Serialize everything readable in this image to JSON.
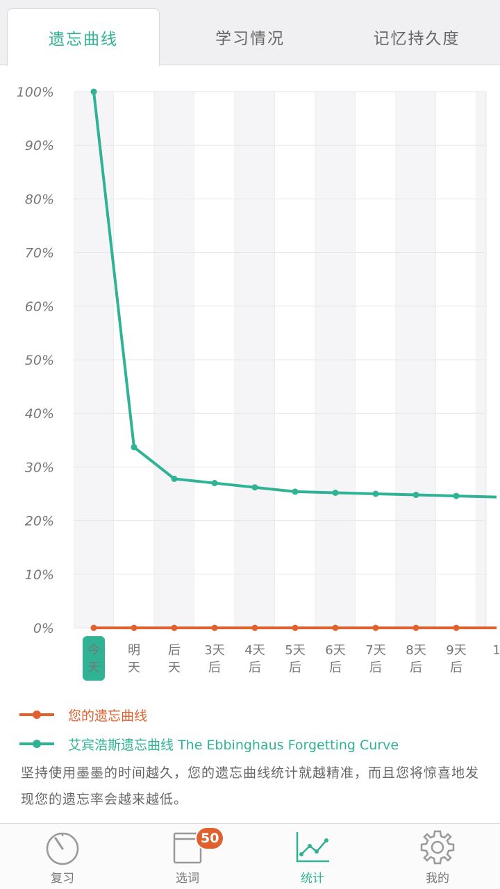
{
  "tabs": [
    {
      "label": "遗忘曲线",
      "active": true
    },
    {
      "label": "学习情况",
      "active": false
    },
    {
      "label": "记忆持久度",
      "active": false
    }
  ],
  "chart_data": {
    "type": "line",
    "categories": [
      "今天",
      "明天",
      "后天",
      "3天后",
      "4天后",
      "5天后",
      "6天后",
      "7天后",
      "8天后",
      "9天后",
      "1"
    ],
    "y_tick_labels": [
      "100%",
      "90%",
      "80%",
      "70%",
      "60%",
      "50%",
      "40%",
      "30%",
      "20%",
      "10%",
      "0%"
    ],
    "ylim": [
      0,
      100
    ],
    "grid": true,
    "series": [
      {
        "name": "您的遗忘曲线",
        "color": "#e0602e",
        "values": [
          0,
          0,
          0,
          0,
          0,
          0,
          0,
          0,
          0,
          0,
          0
        ]
      },
      {
        "name": "艾宾浩斯遗忘曲线 The Ebbinghaus Forgetting Curve",
        "color": "#2fb394",
        "values": [
          100,
          33.7,
          27.8,
          27.0,
          26.2,
          25.4,
          25.2,
          25.0,
          24.8,
          24.6,
          24.4
        ]
      }
    ],
    "highlight_category": 0
  },
  "note": "坚持使用墨墨的时间越久，您的遗忘曲线统计就越精准，而且您将惊喜地发现您的遗忘率会越来越低。",
  "bottom_nav": [
    {
      "label": "复习",
      "icon": "review-dial-icon",
      "active": false
    },
    {
      "label": "选词",
      "icon": "book-icon",
      "active": false,
      "badge": "50"
    },
    {
      "label": "统计",
      "icon": "line-chart-icon",
      "active": true
    },
    {
      "label": "我的",
      "icon": "gear-icon",
      "active": false
    }
  ],
  "colors": {
    "accent": "#2fb394",
    "user_curve": "#e0602e",
    "badge": "#e0602e"
  }
}
